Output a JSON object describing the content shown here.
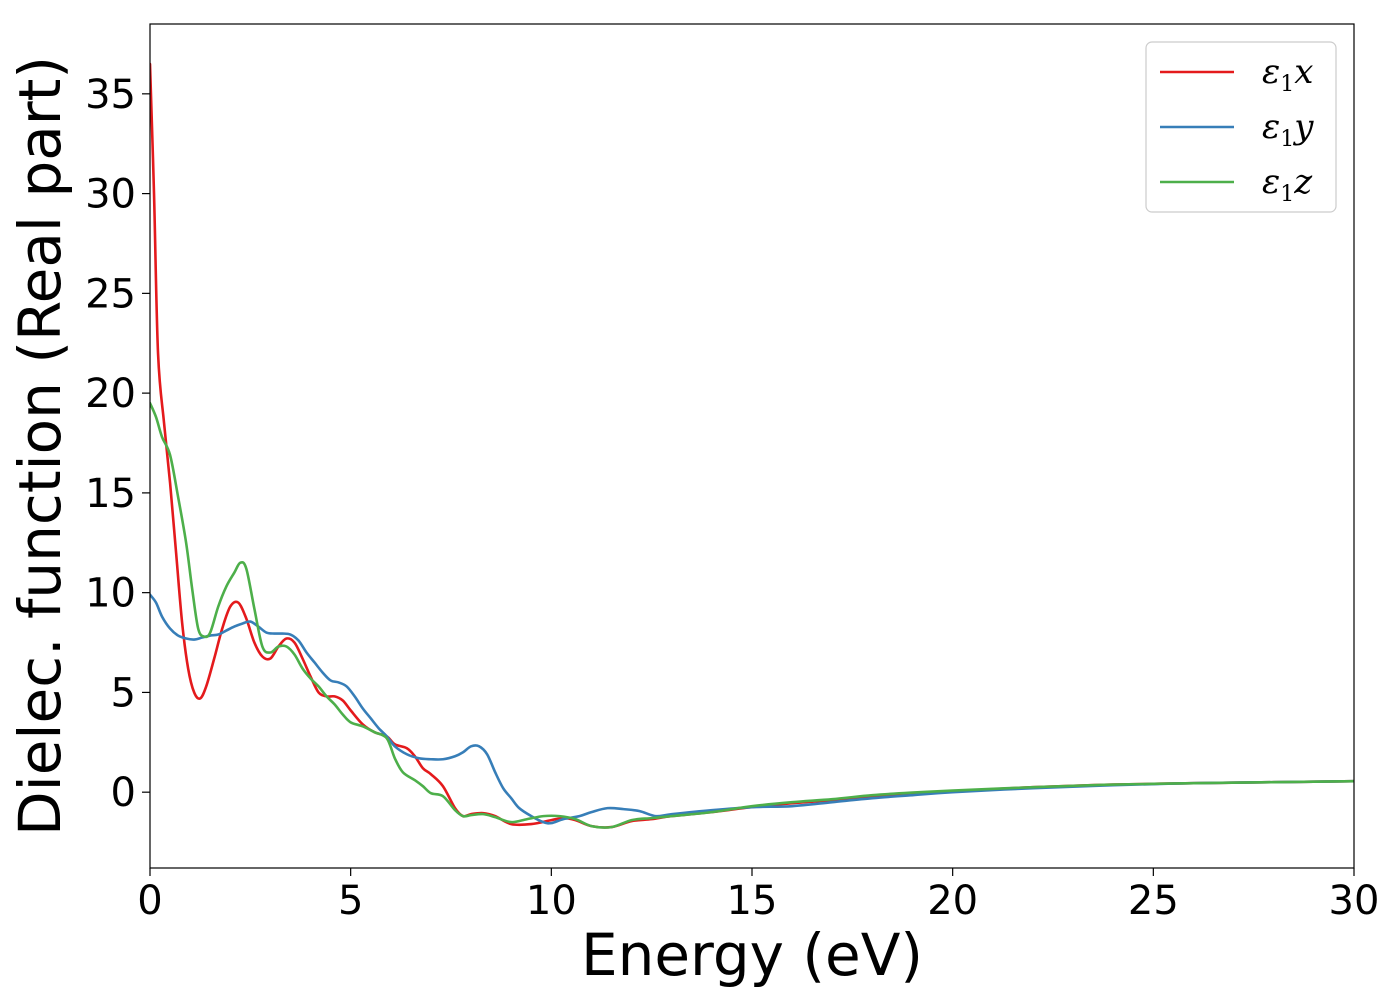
{
  "chart_data": {
    "type": "line",
    "title": "",
    "xlabel": "Energy (eV)",
    "ylabel": "Dielec. function (Real part)",
    "xlim": [
      0,
      30
    ],
    "ylim": [
      -3.8,
      38.5
    ],
    "x_ticks": [
      0,
      5,
      10,
      15,
      20,
      25,
      30
    ],
    "y_ticks": [
      0,
      5,
      10,
      15,
      20,
      25,
      30,
      35
    ],
    "grid": false,
    "legend_position": "top-right",
    "series": [
      {
        "name": "ε1x",
        "symbol": "ε",
        "subscript": "1",
        "axis": "x",
        "color": "#e41a1c",
        "points": [
          [
            0,
            36.5
          ],
          [
            0.1,
            30
          ],
          [
            0.2,
            22
          ],
          [
            0.35,
            18.5
          ],
          [
            0.5,
            15.5
          ],
          [
            0.65,
            12
          ],
          [
            0.8,
            8.5
          ],
          [
            0.95,
            6.2
          ],
          [
            1.1,
            5
          ],
          [
            1.25,
            4.7
          ],
          [
            1.4,
            5.3
          ],
          [
            1.6,
            6.7
          ],
          [
            1.8,
            8.2
          ],
          [
            2.0,
            9.3
          ],
          [
            2.2,
            9.5
          ],
          [
            2.4,
            8.7
          ],
          [
            2.6,
            7.5
          ],
          [
            2.8,
            6.8
          ],
          [
            3.0,
            6.7
          ],
          [
            3.2,
            7.3
          ],
          [
            3.4,
            7.7
          ],
          [
            3.6,
            7.5
          ],
          [
            3.8,
            6.7
          ],
          [
            4.0,
            5.8
          ],
          [
            4.2,
            5
          ],
          [
            4.4,
            4.8
          ],
          [
            4.6,
            4.8
          ],
          [
            4.8,
            4.6
          ],
          [
            5.0,
            4.1
          ],
          [
            5.3,
            3.4
          ],
          [
            5.6,
            3.0
          ],
          [
            5.9,
            2.8
          ],
          [
            6.1,
            2.4
          ],
          [
            6.4,
            2.2
          ],
          [
            6.6,
            1.8
          ],
          [
            6.8,
            1.2
          ],
          [
            7.0,
            0.9
          ],
          [
            7.3,
            0.3
          ],
          [
            7.6,
            -0.8
          ],
          [
            7.8,
            -1.2
          ],
          [
            8.0,
            -1.1
          ],
          [
            8.3,
            -1.05
          ],
          [
            8.6,
            -1.2
          ],
          [
            9.0,
            -1.6
          ],
          [
            9.5,
            -1.6
          ],
          [
            10.0,
            -1.4
          ],
          [
            10.3,
            -1.3
          ],
          [
            10.6,
            -1.4
          ],
          [
            11.0,
            -1.7
          ],
          [
            11.5,
            -1.75
          ],
          [
            12.0,
            -1.45
          ],
          [
            12.5,
            -1.35
          ],
          [
            13.0,
            -1.2
          ],
          [
            14.0,
            -1.0
          ],
          [
            15.0,
            -0.75
          ],
          [
            16.0,
            -0.55
          ],
          [
            17.0,
            -0.4
          ],
          [
            18.0,
            -0.2
          ],
          [
            19.0,
            -0.05
          ],
          [
            20.0,
            0.05
          ],
          [
            22.0,
            0.25
          ],
          [
            24.0,
            0.38
          ],
          [
            26.0,
            0.45
          ],
          [
            28.0,
            0.5
          ],
          [
            30.0,
            0.55
          ]
        ]
      },
      {
        "name": "ε1y",
        "symbol": "ε",
        "subscript": "1",
        "axis": "y",
        "color": "#377eb8",
        "points": [
          [
            0,
            9.9
          ],
          [
            0.15,
            9.5
          ],
          [
            0.3,
            8.8
          ],
          [
            0.5,
            8.2
          ],
          [
            0.7,
            7.85
          ],
          [
            0.9,
            7.7
          ],
          [
            1.1,
            7.65
          ],
          [
            1.3,
            7.75
          ],
          [
            1.5,
            7.85
          ],
          [
            1.7,
            7.9
          ],
          [
            1.9,
            8.1
          ],
          [
            2.1,
            8.3
          ],
          [
            2.3,
            8.45
          ],
          [
            2.5,
            8.55
          ],
          [
            2.7,
            8.3
          ],
          [
            2.9,
            8.0
          ],
          [
            3.1,
            7.95
          ],
          [
            3.3,
            7.95
          ],
          [
            3.5,
            7.9
          ],
          [
            3.7,
            7.6
          ],
          [
            3.9,
            7.0
          ],
          [
            4.1,
            6.5
          ],
          [
            4.3,
            6.0
          ],
          [
            4.5,
            5.6
          ],
          [
            4.7,
            5.5
          ],
          [
            4.9,
            5.3
          ],
          [
            5.1,
            4.8
          ],
          [
            5.3,
            4.2
          ],
          [
            5.5,
            3.7
          ],
          [
            5.7,
            3.2
          ],
          [
            5.9,
            2.8
          ],
          [
            6.1,
            2.3
          ],
          [
            6.4,
            1.9
          ],
          [
            6.7,
            1.7
          ],
          [
            7.0,
            1.65
          ],
          [
            7.3,
            1.65
          ],
          [
            7.6,
            1.8
          ],
          [
            7.8,
            2.0
          ],
          [
            8.0,
            2.3
          ],
          [
            8.2,
            2.3
          ],
          [
            8.4,
            1.9
          ],
          [
            8.6,
            1.0
          ],
          [
            8.8,
            0.2
          ],
          [
            9.0,
            -0.3
          ],
          [
            9.2,
            -0.8
          ],
          [
            9.5,
            -1.2
          ],
          [
            9.8,
            -1.5
          ],
          [
            10.0,
            -1.55
          ],
          [
            10.3,
            -1.35
          ],
          [
            10.7,
            -1.2
          ],
          [
            11.0,
            -1.0
          ],
          [
            11.4,
            -0.8
          ],
          [
            11.8,
            -0.85
          ],
          [
            12.2,
            -0.95
          ],
          [
            12.6,
            -1.2
          ],
          [
            13.0,
            -1.1
          ],
          [
            14.0,
            -0.9
          ],
          [
            15.0,
            -0.75
          ],
          [
            16.0,
            -0.7
          ],
          [
            17.0,
            -0.5
          ],
          [
            18.0,
            -0.3
          ],
          [
            19.0,
            -0.15
          ],
          [
            20.0,
            0.0
          ],
          [
            22.0,
            0.2
          ],
          [
            24.0,
            0.35
          ],
          [
            26.0,
            0.45
          ],
          [
            28.0,
            0.5
          ],
          [
            30.0,
            0.55
          ]
        ]
      },
      {
        "name": "ε1z",
        "symbol": "ε",
        "subscript": "1",
        "axis": "z",
        "color": "#4daf4a",
        "points": [
          [
            0,
            19.5
          ],
          [
            0.15,
            18.8
          ],
          [
            0.3,
            17.8
          ],
          [
            0.5,
            16.9
          ],
          [
            0.7,
            14.8
          ],
          [
            0.9,
            12.5
          ],
          [
            1.05,
            10.2
          ],
          [
            1.2,
            8.2
          ],
          [
            1.35,
            7.8
          ],
          [
            1.5,
            8.0
          ],
          [
            1.7,
            9.3
          ],
          [
            1.9,
            10.3
          ],
          [
            2.1,
            11.0
          ],
          [
            2.25,
            11.5
          ],
          [
            2.4,
            11.2
          ],
          [
            2.6,
            9.2
          ],
          [
            2.8,
            7.3
          ],
          [
            3.0,
            7.0
          ],
          [
            3.2,
            7.3
          ],
          [
            3.4,
            7.3
          ],
          [
            3.6,
            6.9
          ],
          [
            3.8,
            6.2
          ],
          [
            4.0,
            5.7
          ],
          [
            4.2,
            5.3
          ],
          [
            4.4,
            4.8
          ],
          [
            4.6,
            4.4
          ],
          [
            4.8,
            3.9
          ],
          [
            5.0,
            3.5
          ],
          [
            5.3,
            3.3
          ],
          [
            5.6,
            3.0
          ],
          [
            5.9,
            2.7
          ],
          [
            6.1,
            1.7
          ],
          [
            6.3,
            1.0
          ],
          [
            6.6,
            0.6
          ],
          [
            6.8,
            0.3
          ],
          [
            7.0,
            -0.05
          ],
          [
            7.3,
            -0.2
          ],
          [
            7.6,
            -0.9
          ],
          [
            7.8,
            -1.2
          ],
          [
            8.0,
            -1.15
          ],
          [
            8.3,
            -1.1
          ],
          [
            8.6,
            -1.25
          ],
          [
            9.0,
            -1.5
          ],
          [
            9.4,
            -1.35
          ],
          [
            9.8,
            -1.2
          ],
          [
            10.2,
            -1.2
          ],
          [
            10.6,
            -1.35
          ],
          [
            11.0,
            -1.7
          ],
          [
            11.5,
            -1.75
          ],
          [
            12.0,
            -1.4
          ],
          [
            12.5,
            -1.3
          ],
          [
            13.0,
            -1.2
          ],
          [
            14.0,
            -1.0
          ],
          [
            15.0,
            -0.7
          ],
          [
            16.0,
            -0.5
          ],
          [
            17.0,
            -0.35
          ],
          [
            18.0,
            -0.15
          ],
          [
            19.0,
            -0.02
          ],
          [
            20.0,
            0.08
          ],
          [
            22.0,
            0.25
          ],
          [
            24.0,
            0.38
          ],
          [
            26.0,
            0.45
          ],
          [
            28.0,
            0.5
          ],
          [
            30.0,
            0.55
          ]
        ]
      }
    ]
  }
}
